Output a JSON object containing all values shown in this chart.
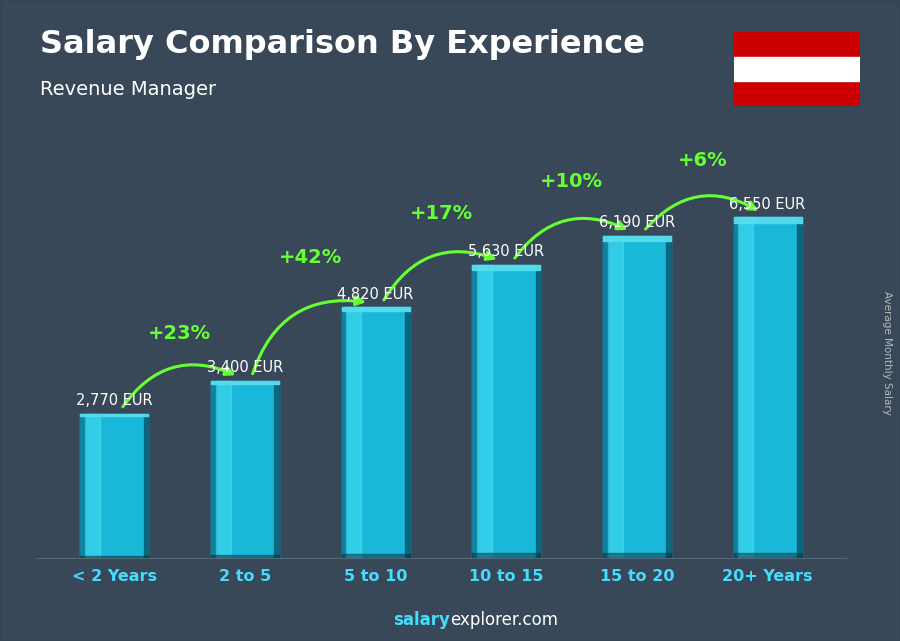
{
  "title": "Salary Comparison By Experience",
  "subtitle": "Revenue Manager",
  "categories": [
    "< 2 Years",
    "2 to 5",
    "5 to 10",
    "10 to 15",
    "15 to 20",
    "20+ Years"
  ],
  "values": [
    2770,
    3400,
    4820,
    5630,
    6190,
    6550
  ],
  "labels": [
    "2,770 EUR",
    "3,400 EUR",
    "4,820 EUR",
    "5,630 EUR",
    "6,190 EUR",
    "6,550 EUR"
  ],
  "pct_changes": [
    "+23%",
    "+42%",
    "+17%",
    "+10%",
    "+6%"
  ],
  "bar_front_color": "#1ab8d8",
  "bar_left_color": "#0d7a99",
  "bar_right_color": "#085f77",
  "bar_top_color": "#55ddee",
  "bg_overlay_color": "#2a3a4a",
  "bg_overlay_alpha": 0.55,
  "title_color": "#ffffff",
  "subtitle_color": "#ffffff",
  "label_color": "#ffffff",
  "pct_color": "#66ff33",
  "xticklabel_color": "#44ddff",
  "footer_salary_color": "#44ddff",
  "footer_explorer_color": "#ffffff",
  "right_label": "Average Monthly Salary",
  "right_label_color": "#cccccc",
  "footer_salary": "salary",
  "footer_explorer": "explorer.com",
  "ylim_max": 8500,
  "bar_width": 0.52,
  "flag_red": "#CC0000",
  "flag_white": "#FFFFFF"
}
